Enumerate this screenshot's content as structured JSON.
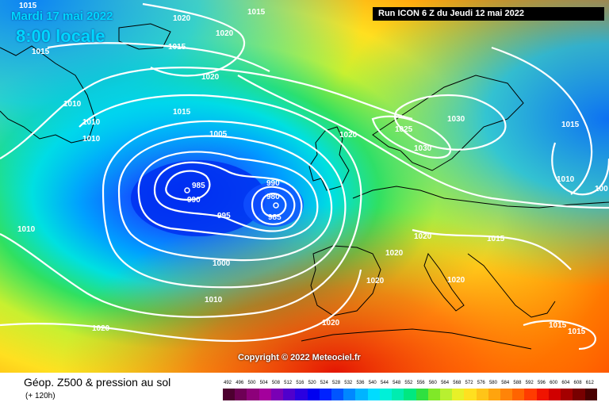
{
  "map_header": {
    "date": "Mardi 17 mai 2022",
    "time": "8:00 locale",
    "run": "Run ICON 6 Z du Jeudi 12 mai 2022"
  },
  "copyright": "Copyright © 2022 Meteociel.fr",
  "footer": {
    "title": "Géop. Z500 & pression au sol",
    "subtitle": "(+ 120h)"
  },
  "isobar_labels": [
    {
      "text": "1015",
      "name": "isobar-label-1015-nw"
    },
    {
      "text": "1015",
      "name": "isobar-label-1015-n"
    },
    {
      "text": "1020",
      "name": "isobar-label-1020-n1"
    },
    {
      "text": "1020",
      "name": "isobar-label-1020-n2"
    },
    {
      "text": "1015",
      "name": "isobar-label-1015-greenland"
    },
    {
      "text": "1015",
      "name": "isobar-label-1015-w"
    },
    {
      "text": "1020",
      "name": "isobar-label-1020-n3"
    },
    {
      "text": "1015",
      "name": "isobar-label-1015-mid"
    },
    {
      "text": "1010",
      "name": "isobar-label-1010-w1"
    },
    {
      "text": "1010",
      "name": "isobar-label-1010-w2"
    },
    {
      "text": "1010",
      "name": "isobar-label-1010-w3"
    },
    {
      "text": "1005",
      "name": "isobar-label-1005"
    },
    {
      "text": "985",
      "name": "isobar-label-985-w"
    },
    {
      "text": "990",
      "name": "isobar-label-990-w"
    },
    {
      "text": "990",
      "name": "isobar-label-990-e"
    },
    {
      "text": "980",
      "name": "isobar-label-980"
    },
    {
      "text": "985",
      "name": "isobar-label-985-e"
    },
    {
      "text": "995",
      "name": "isobar-label-995"
    },
    {
      "text": "1000",
      "name": "isobar-label-1000"
    },
    {
      "text": "1010",
      "name": "isobar-label-1010-s"
    },
    {
      "text": "1010",
      "name": "isobar-label-1010-sw"
    },
    {
      "text": "1020",
      "name": "isobar-label-1020-sw"
    },
    {
      "text": "1020",
      "name": "isobar-label-1020-uk"
    },
    {
      "text": "1025",
      "name": "isobar-label-1025"
    },
    {
      "text": "1030",
      "name": "isobar-label-1030-n"
    },
    {
      "text": "1030",
      "name": "isobar-label-1030-s"
    },
    {
      "text": "1015",
      "name": "isobar-label-1015-ne"
    },
    {
      "text": "1010",
      "name": "isobar-label-1010-e"
    },
    {
      "text": "100",
      "name": "isobar-label-100-e"
    },
    {
      "text": "1020",
      "name": "isobar-label-1020-c1"
    },
    {
      "text": "1015",
      "name": "isobar-label-1015-c"
    },
    {
      "text": "1020",
      "name": "isobar-label-1020-c2"
    },
    {
      "text": "1020",
      "name": "isobar-label-1020-iberia"
    },
    {
      "text": "1020",
      "name": "isobar-label-1020-balkans"
    },
    {
      "text": "1020",
      "name": "isobar-label-1020-med"
    },
    {
      "text": "1015",
      "name": "isobar-label-1015-se1"
    },
    {
      "text": "1015",
      "name": "isobar-label-1015-se2"
    }
  ],
  "lows": [
    {
      "symbol": "D",
      "name": "low-pressure-center-west"
    },
    {
      "symbol": "D",
      "name": "low-pressure-center-east"
    }
  ],
  "legend": {
    "labels": [
      "492",
      "496",
      "500",
      "504",
      "508",
      "512",
      "516",
      "520",
      "524",
      "528",
      "532",
      "536",
      "540",
      "544",
      "548",
      "552",
      "556",
      "560",
      "564",
      "568",
      "572",
      "576",
      "580",
      "584",
      "588",
      "592",
      "596",
      "600",
      "604",
      "608",
      "612"
    ],
    "colors": [
      "#4d0030",
      "#6e0055",
      "#8d007a",
      "#a4009c",
      "#7a00b5",
      "#5000cc",
      "#2a00e0",
      "#0000f0",
      "#0022ff",
      "#0055ff",
      "#0088ff",
      "#00b4ff",
      "#00dcff",
      "#00f0d8",
      "#00ecb0",
      "#00e880",
      "#30e040",
      "#80e828",
      "#b8f030",
      "#e8f028",
      "#ffe020",
      "#ffc418",
      "#ffa40e",
      "#ff8408",
      "#ff6400",
      "#ff3c00",
      "#f01400",
      "#d00000",
      "#a40000",
      "#780000",
      "#4a0000"
    ]
  }
}
